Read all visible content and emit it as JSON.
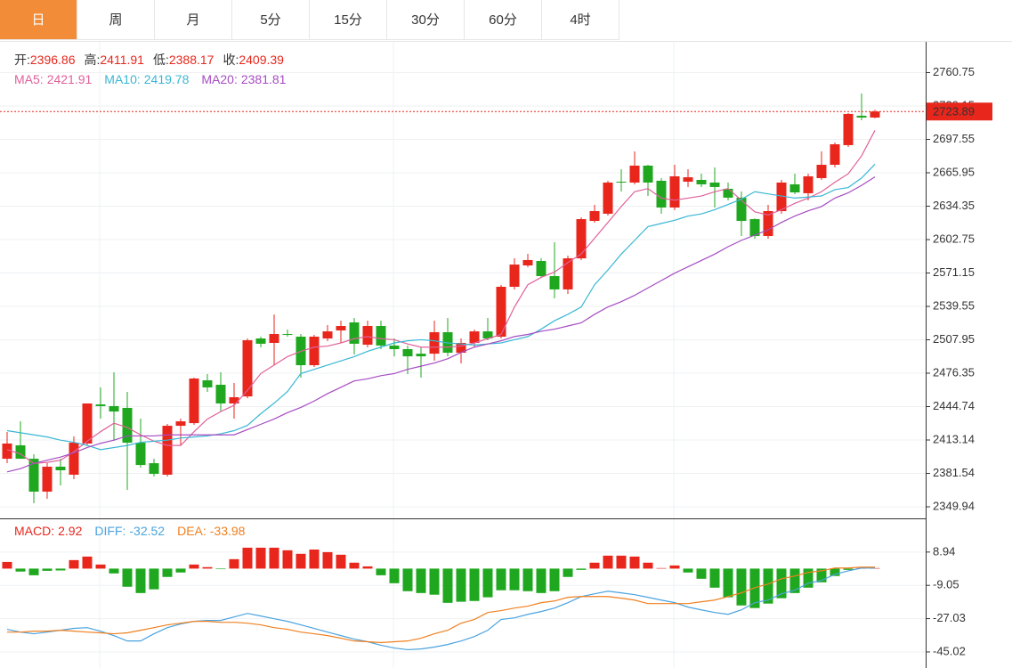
{
  "tabs": [
    "日",
    "周",
    "月",
    "5分",
    "15分",
    "30分",
    "60分",
    "4时"
  ],
  "active_tab": 0,
  "chart_data": {
    "type": "candlestick",
    "up_color": "#e8261c",
    "down_color": "#1fa81f",
    "quote": [
      {
        "label": "开:",
        "value": 2396.86
      },
      {
        "label": "高:",
        "value": 2411.91
      },
      {
        "label": "低:",
        "value": 2388.17
      },
      {
        "label": "收:",
        "value": 2409.39
      }
    ],
    "ylim": [
      2339.0,
      2789.8
    ],
    "yticks": [
      2349.94,
      2381.54,
      2413.14,
      2444.74,
      2476.35,
      2507.95,
      2539.55,
      2571.15,
      2602.75,
      2634.35,
      2665.95,
      2697.55,
      2729.15,
      2760.75
    ],
    "grid": true,
    "open": [
      2395.4,
      2408.1,
      2395.4,
      2364.3,
      2387.9,
      2380.3,
      2409.8,
      2446.8,
      2445.2,
      2443.5,
      2410.6,
      2391.2,
      2380.3,
      2426.6,
      2429.1,
      2469.6,
      2465.4,
      2447.7,
      2454.4,
      2509.2,
      2505.0,
      2513.4,
      2510.9,
      2483.9,
      2509.2,
      2516.8,
      2524.4,
      2503.3,
      2521.0,
      2502.5,
      2499.1,
      2494.8,
      2494.8,
      2515.1,
      2495.7,
      2505.0,
      2515.9,
      2510.9,
      2558.1,
      2578.3,
      2582.5,
      2568.2,
      2555.6,
      2585.0,
      2620.4,
      2627.2,
      2657.5,
      2656.7,
      2672.7,
      2658.4,
      2633.1,
      2657.5,
      2659.2,
      2656.7,
      2650.8,
      2642.4,
      2622.1,
      2606.1,
      2629.7,
      2655.0,
      2646.6,
      2660.9,
      2673.5,
      2692.1,
      2719.9,
      2718.2
    ],
    "high": [
      2420.7,
      2430.8,
      2399.7,
      2391.2,
      2395.4,
      2416.5,
      2447.7,
      2462.9,
      2477.2,
      2458.6,
      2433.4,
      2395.4,
      2428.3,
      2433.4,
      2472.1,
      2475.5,
      2477.2,
      2467.1,
      2509.2,
      2510.9,
      2531.9,
      2517.6,
      2513.4,
      2512.6,
      2521.8,
      2526.1,
      2528.6,
      2526.1,
      2526.1,
      2509.2,
      2502.5,
      2500.8,
      2526.1,
      2528.6,
      2509.2,
      2517.6,
      2528.6,
      2559.8,
      2585.0,
      2589.3,
      2585.0,
      2600.2,
      2587.6,
      2623.8,
      2635.6,
      2658.4,
      2669.3,
      2686.2,
      2673.5,
      2660.9,
      2673.5,
      2669.3,
      2665.1,
      2671.0,
      2656.7,
      2648.2,
      2622.9,
      2635.6,
      2659.2,
      2665.1,
      2665.1,
      2686.2,
      2694.6,
      2722.4,
      2740.9,
      2725.5
    ],
    "low": [
      2391.2,
      2395.4,
      2353.3,
      2357.5,
      2370.2,
      2376.1,
      2408.1,
      2433.4,
      2412.3,
      2365.9,
      2387.0,
      2378.6,
      2378.6,
      2408.1,
      2427.5,
      2458.6,
      2440.1,
      2433.4,
      2452.7,
      2500.8,
      2483.9,
      2510.9,
      2472.1,
      2482.2,
      2506.7,
      2505.0,
      2494.0,
      2500.8,
      2499.1,
      2492.3,
      2475.5,
      2472.1,
      2488.1,
      2492.3,
      2485.6,
      2500.8,
      2507.5,
      2509.2,
      2555.6,
      2576.6,
      2566.5,
      2547.1,
      2551.3,
      2583.4,
      2618.7,
      2625.5,
      2648.2,
      2655.0,
      2644.0,
      2627.2,
      2630.6,
      2652.5,
      2652.5,
      2633.1,
      2639.8,
      2606.1,
      2603.6,
      2603.6,
      2627.2,
      2645.7,
      2639.8,
      2659.2,
      2671.0,
      2690.4,
      2715.7,
      2717.4
    ],
    "close": [
      2409.8,
      2395.4,
      2364.3,
      2387.9,
      2384.5,
      2410.6,
      2447.7,
      2445.2,
      2440.1,
      2410.6,
      2389.5,
      2381.1,
      2426.6,
      2430.8,
      2471.3,
      2462.9,
      2447.7,
      2453.6,
      2507.5,
      2504.2,
      2513.4,
      2512.6,
      2483.9,
      2510.9,
      2515.9,
      2521.0,
      2504.2,
      2521.0,
      2502.5,
      2499.1,
      2492.3,
      2492.3,
      2515.1,
      2495.7,
      2505.0,
      2515.9,
      2509.2,
      2558.1,
      2579.1,
      2583.4,
      2568.2,
      2555.6,
      2585.0,
      2622.1,
      2629.7,
      2656.7,
      2656.7,
      2672.7,
      2656.7,
      2633.1,
      2662.6,
      2661.7,
      2655.0,
      2652.5,
      2642.4,
      2620.4,
      2606.1,
      2629.7,
      2656.7,
      2647.4,
      2662.6,
      2673.5,
      2692.9,
      2721.6,
      2718.2,
      2723.89
    ],
    "series": [
      {
        "name": "MA5:",
        "readout": 2421.91,
        "color": "#e0609a",
        "values": [
          2404,
          2400,
          2391,
          2392,
          2394,
          2402,
          2412,
          2421,
          2429,
          2425,
          2418,
          2412,
          2408,
          2408,
          2421,
          2433,
          2440,
          2446,
          2460,
          2476,
          2484,
          2492,
          2497,
          2501,
          2502,
          2505,
          2509,
          2511,
          2509,
          2508,
          2504,
          2501,
          2501,
          2501,
          2502,
          2505,
          2509,
          2513,
          2539,
          2560,
          2567,
          2572,
          2581,
          2589,
          2604,
          2619,
          2634,
          2648,
          2651,
          2642,
          2640,
          2642,
          2644,
          2648,
          2651,
          2640,
          2629,
          2626,
          2631,
          2637,
          2642,
          2648,
          2657,
          2665,
          2682,
          2706
        ]
      },
      {
        "name": "MA10:",
        "readout": 2419.78,
        "color": "#3ab7d4",
        "values": [
          2422,
          2420,
          2418,
          2416,
          2413,
          2411,
          2408,
          2404,
          2406,
          2408,
          2411,
          2412,
          2413,
          2415,
          2416,
          2417,
          2419,
          2422,
          2427,
          2438,
          2448,
          2459,
          2476,
          2480,
          2484,
          2488,
          2492,
          2497,
          2501,
          2505,
          2507,
          2508,
          2507,
          2505,
          2504,
          2503,
          2504,
          2505,
          2508,
          2511,
          2518,
          2526,
          2532,
          2539,
          2560,
          2574,
          2589,
          2602,
          2615,
          2618,
          2621,
          2625,
          2627,
          2631,
          2636,
          2641,
          2648,
          2646,
          2644,
          2642,
          2643,
          2644,
          2650,
          2652,
          2661,
          2674
        ]
      },
      {
        "name": "MA20:",
        "readout": 2381.81,
        "color": "#a64cc2",
        "values": [
          2383,
          2386,
          2391,
          2394,
          2397,
          2401,
          2406,
          2410,
          2413,
          2417,
          2417,
          2417,
          2418,
          2418,
          2418,
          2418,
          2418,
          2418,
          2423,
          2428,
          2433,
          2439,
          2444,
          2450,
          2457,
          2463,
          2469,
          2471,
          2474,
          2476,
          2480,
          2483,
          2486,
          2490,
          2496,
          2501,
          2504,
          2507,
          2511,
          2513,
          2516,
          2518,
          2521,
          2524,
          2532,
          2539,
          2544,
          2550,
          2557,
          2564,
          2571,
          2577,
          2583,
          2589,
          2596,
          2602,
          2607,
          2612,
          2619,
          2625,
          2630,
          2634,
          2642,
          2647,
          2654,
          2662
        ]
      }
    ],
    "macd": {
      "ylim": [
        -53.7,
        25.7
      ],
      "yticks": [
        -45.02,
        -27.03,
        -9.05,
        8.94
      ],
      "histogram": {
        "name": "MACD:",
        "readout": 2.92,
        "color": "#e8261c",
        "values": [
          3.6,
          -1.6,
          -3.6,
          -1.2,
          -1.0,
          4.6,
          6.5,
          2.2,
          -2.6,
          -9.8,
          -13.2,
          -11.2,
          -4.5,
          -2.1,
          2.2,
          0.8,
          -0.3,
          5.1,
          11.3,
          11.3,
          11.3,
          9.9,
          8.0,
          10.3,
          8.9,
          7.5,
          3.2,
          1.2,
          -3.6,
          -7.9,
          -12.2,
          -13.2,
          -14.1,
          -18.5,
          -17.9,
          -17.5,
          -15.5,
          -11.7,
          -11.7,
          -12.2,
          -13.2,
          -12.2,
          -4.5,
          -0.7,
          3.2,
          7.0,
          7.0,
          6.5,
          3.2,
          0.3,
          1.7,
          -2.1,
          -5.5,
          -10.3,
          -15.5,
          -19.9,
          -21.3,
          -18.9,
          -16.0,
          -13.2,
          -10.3,
          -7.4,
          -4.0,
          -0.7,
          0.3,
          0.3
        ]
      },
      "series": [
        {
          "name": "DIFF:",
          "readout": -32.52,
          "color": "#4aa3df",
          "values": [
            -32.8,
            -34.3,
            -35.2,
            -34.3,
            -33.3,
            -32.3,
            -31.9,
            -33.8,
            -36.2,
            -39.1,
            -39.1,
            -35.2,
            -31.9,
            -29.9,
            -28.5,
            -28.0,
            -28.0,
            -26.1,
            -24.2,
            -25.6,
            -27.1,
            -28.5,
            -30.4,
            -32.3,
            -34.3,
            -36.2,
            -38.1,
            -39.5,
            -41.4,
            -42.9,
            -43.8,
            -43.4,
            -42.4,
            -41.0,
            -39.1,
            -36.7,
            -33.3,
            -27.5,
            -26.6,
            -24.7,
            -23.2,
            -21.3,
            -18.4,
            -15.1,
            -13.6,
            -12.2,
            -13.1,
            -14.1,
            -15.5,
            -17.0,
            -18.4,
            -20.8,
            -22.3,
            -23.7,
            -24.7,
            -22.3,
            -18.4,
            -17.0,
            -13.6,
            -11.7,
            -7.9,
            -6.4,
            -3.1,
            -1.2,
            0.3,
            0.3
          ]
        },
        {
          "name": "DEA:",
          "readout": -33.98,
          "color": "#f08020",
          "values": [
            -34.3,
            -34.3,
            -33.8,
            -33.8,
            -33.3,
            -33.8,
            -34.3,
            -34.7,
            -35.2,
            -34.7,
            -33.3,
            -31.9,
            -30.4,
            -29.5,
            -28.5,
            -28.5,
            -29.0,
            -29.0,
            -29.5,
            -30.4,
            -31.9,
            -32.8,
            -34.3,
            -35.2,
            -36.2,
            -37.6,
            -39.1,
            -39.5,
            -40.0,
            -39.5,
            -39.1,
            -37.6,
            -35.2,
            -33.3,
            -29.5,
            -27.5,
            -23.7,
            -22.7,
            -21.3,
            -20.3,
            -18.4,
            -17.5,
            -15.5,
            -15.1,
            -15.1,
            -15.1,
            -16.0,
            -17.0,
            -18.9,
            -18.9,
            -18.9,
            -18.9,
            -17.9,
            -17.0,
            -15.1,
            -13.1,
            -10.3,
            -8.3,
            -5.5,
            -4.0,
            -2.1,
            -1.2,
            0.3,
            0.3,
            0.8,
            0.8
          ]
        }
      ]
    }
  }
}
